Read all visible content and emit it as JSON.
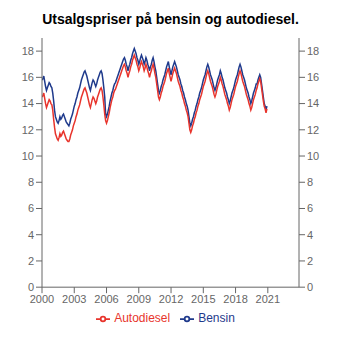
{
  "chart_data": {
    "type": "line",
    "title": "Utsalgspriser på bensin og autodiesel.",
    "x": [
      2000,
      2000.083333,
      2000.166667,
      2000.25,
      2000.333333,
      2000.416667,
      2000.5,
      2000.583333,
      2000.666667,
      2000.75,
      2000.833333,
      2000.916667,
      2001,
      2001.083333,
      2001.166667,
      2001.25,
      2001.333333,
      2001.416667,
      2001.5,
      2001.583333,
      2001.666667,
      2001.75,
      2001.833333,
      2001.916667,
      2002,
      2002.083333,
      2002.166667,
      2002.25,
      2002.333333,
      2002.416667,
      2002.5,
      2002.583333,
      2002.666667,
      2002.75,
      2002.833333,
      2002.916667,
      2003,
      2003.083333,
      2003.166667,
      2003.25,
      2003.333333,
      2003.416667,
      2003.5,
      2003.583333,
      2003.666667,
      2003.75,
      2003.833333,
      2003.916667,
      2004,
      2004.083333,
      2004.166667,
      2004.25,
      2004.333333,
      2004.416667,
      2004.5,
      2004.583333,
      2004.666667,
      2004.75,
      2004.833333,
      2004.916667,
      2005,
      2005.083333,
      2005.166667,
      2005.25,
      2005.333333,
      2005.416667,
      2005.5,
      2005.583333,
      2005.666667,
      2005.75,
      2005.833333,
      2005.916667,
      2006,
      2006.083333,
      2006.166667,
      2006.25,
      2006.333333,
      2006.416667,
      2006.5,
      2006.583333,
      2006.666667,
      2006.75,
      2006.833333,
      2006.916667,
      2007,
      2007.083333,
      2007.166667,
      2007.25,
      2007.333333,
      2007.416667,
      2007.5,
      2007.583333,
      2007.666667,
      2007.75,
      2007.833333,
      2007.916667,
      2008,
      2008.083333,
      2008.166667,
      2008.25,
      2008.333333,
      2008.416667,
      2008.5,
      2008.583333,
      2008.666667,
      2008.75,
      2008.833333,
      2008.916667,
      2009,
      2009.083333,
      2009.166667,
      2009.25,
      2009.333333,
      2009.416667,
      2009.5,
      2009.583333,
      2009.666667,
      2009.75,
      2009.833333,
      2009.916667,
      2010,
      2010.083333,
      2010.166667,
      2010.25,
      2010.333333,
      2010.416667,
      2010.5,
      2010.583333,
      2010.666667,
      2010.75,
      2010.833333,
      2010.916667,
      2011,
      2011.083333,
      2011.166667,
      2011.25,
      2011.333333,
      2011.416667,
      2011.5,
      2011.583333,
      2011.666667,
      2011.75,
      2011.833333,
      2011.916667,
      2012,
      2012.083333,
      2012.166667,
      2012.25,
      2012.333333,
      2012.416667,
      2012.5,
      2012.583333,
      2012.666667,
      2012.75,
      2012.833333,
      2012.916667,
      2013,
      2013.083333,
      2013.166667,
      2013.25,
      2013.333333,
      2013.416667,
      2013.5,
      2013.583333,
      2013.666667,
      2013.75,
      2013.833333,
      2013.916667,
      2014,
      2014.083333,
      2014.166667,
      2014.25,
      2014.333333,
      2014.416667,
      2014.5,
      2014.583333,
      2014.666667,
      2014.75,
      2014.833333,
      2014.916667,
      2015,
      2015.083333,
      2015.166667,
      2015.25,
      2015.333333,
      2015.416667,
      2015.5,
      2015.583333,
      2015.666667,
      2015.75,
      2015.833333,
      2015.916667,
      2016,
      2016.083333,
      2016.166667,
      2016.25,
      2016.333333,
      2016.416667,
      2016.5,
      2016.583333,
      2016.666667,
      2016.75,
      2016.833333,
      2016.916667,
      2017,
      2017.083333,
      2017.166667,
      2017.25,
      2017.333333,
      2017.416667,
      2017.5,
      2017.583333,
      2017.666667,
      2017.75,
      2017.833333,
      2017.916667,
      2018,
      2018.083333,
      2018.166667,
      2018.25,
      2018.333333,
      2018.416667,
      2018.5,
      2018.583333,
      2018.666667,
      2018.75,
      2018.833333,
      2018.916667,
      2019,
      2019.083333,
      2019.166667,
      2019.25,
      2019.333333,
      2019.416667,
      2019.5,
      2019.583333,
      2019.666667,
      2019.75,
      2019.833333,
      2019.916667,
      2020,
      2020.083333,
      2020.166667,
      2020.25,
      2020.333333,
      2020.416667,
      2020.5,
      2020.583333,
      2020.666667,
      2020.75,
      2020.833333,
      2020.916667
    ],
    "series": [
      {
        "name": "Bensin",
        "color": "#1f3a8c",
        "values": [
          15.8,
          15.9,
          16.1,
          15.7,
          15.3,
          15.0,
          15.2,
          15.4,
          15.6,
          15.5,
          15.3,
          15.2,
          14.8,
          14.2,
          13.5,
          13.0,
          12.8,
          12.6,
          12.5,
          12.7,
          13.0,
          12.8,
          12.9,
          13.1,
          13.2,
          13.0,
          12.8,
          12.6,
          12.5,
          12.4,
          12.3,
          12.5,
          12.8,
          13.0,
          13.2,
          13.5,
          13.8,
          14.0,
          14.3,
          14.5,
          14.8,
          15.0,
          15.2,
          15.5,
          15.8,
          16.0,
          16.2,
          16.4,
          16.5,
          16.3,
          16.1,
          15.8,
          15.5,
          15.2,
          15.0,
          15.3,
          15.6,
          15.8,
          15.7,
          15.5,
          15.3,
          15.5,
          15.8,
          16.0,
          16.2,
          16.4,
          16.5,
          16.3,
          15.8,
          15.2,
          14.5,
          13.2,
          13.0,
          13.2,
          13.5,
          13.8,
          14.2,
          14.5,
          14.8,
          15.0,
          15.3,
          15.5,
          15.6,
          15.8,
          16.0,
          16.2,
          16.4,
          16.6,
          16.8,
          17.0,
          17.2,
          17.4,
          17.5,
          17.3,
          17.0,
          16.8,
          16.5,
          16.8,
          17.0,
          17.3,
          17.5,
          17.8,
          18.0,
          18.2,
          18.0,
          17.8,
          17.5,
          17.3,
          17.0,
          17.2,
          17.5,
          17.7,
          17.5,
          17.3,
          17.0,
          17.2,
          17.5,
          17.3,
          17.0,
          16.8,
          16.5,
          16.8,
          17.0,
          17.3,
          17.5,
          17.2,
          16.8,
          16.5,
          16.0,
          15.5,
          15.0,
          14.8,
          15.0,
          15.3,
          15.5,
          15.8,
          16.0,
          16.2,
          16.5,
          16.8,
          17.0,
          17.2,
          16.8,
          16.5,
          16.2,
          16.5,
          16.8,
          17.0,
          17.2,
          17.0,
          16.8,
          16.5,
          16.2,
          16.0,
          15.8,
          15.5,
          15.3,
          15.0,
          14.8,
          14.5,
          14.3,
          14.0,
          13.8,
          13.5,
          13.0,
          12.5,
          12.3,
          12.5,
          12.8,
          13.0,
          13.3,
          13.5,
          13.8,
          14.0,
          14.3,
          14.5,
          14.8,
          15.0,
          15.2,
          15.5,
          15.8,
          16.0,
          16.2,
          16.5,
          16.8,
          17.0,
          16.8,
          16.5,
          16.2,
          16.0,
          15.8,
          15.5,
          15.2,
          15.0,
          15.2,
          15.5,
          15.8,
          16.0,
          16.2,
          16.5,
          16.3,
          16.0,
          15.8,
          15.5,
          15.2,
          15.0,
          14.8,
          14.5,
          14.3,
          14.0,
          14.2,
          14.5,
          14.8,
          15.0,
          15.2,
          15.5,
          15.8,
          16.0,
          16.2,
          16.5,
          16.8,
          17.0,
          16.8,
          16.5,
          16.2,
          16.0,
          15.8,
          15.5,
          15.2,
          15.0,
          14.8,
          14.5,
          14.3,
          14.0,
          14.2,
          14.5,
          14.8,
          15.0,
          15.2,
          15.5,
          15.5,
          15.8,
          16.0,
          16.2,
          16.0,
          15.5,
          15.0,
          14.5,
          14.0,
          13.8,
          13.5,
          13.8
        ]
      },
      {
        "name": "Autodiesel",
        "color": "#e8342c",
        "values": [
          14.5,
          14.6,
          14.8,
          14.4,
          14.0,
          13.7,
          13.9,
          14.1,
          14.3,
          14.2,
          14.0,
          13.9,
          13.5,
          12.8,
          12.2,
          11.7,
          11.5,
          11.3,
          11.2,
          11.4,
          11.7,
          11.5,
          11.6,
          11.8,
          11.9,
          11.7,
          11.5,
          11.3,
          11.2,
          11.1,
          11.1,
          11.3,
          11.6,
          11.8,
          12.0,
          12.3,
          12.5,
          12.7,
          13.0,
          13.2,
          13.5,
          13.7,
          13.9,
          14.2,
          14.5,
          14.7,
          14.9,
          15.1,
          15.2,
          15.0,
          14.8,
          14.5,
          14.2,
          13.9,
          13.7,
          14.0,
          14.3,
          14.5,
          14.4,
          14.2,
          14.0,
          14.2,
          14.5,
          14.7,
          14.9,
          15.1,
          15.2,
          15.0,
          14.5,
          13.9,
          13.2,
          12.7,
          12.5,
          12.7,
          13.0,
          13.3,
          13.7,
          14.0,
          14.3,
          14.5,
          14.8,
          15.0,
          15.1,
          15.3,
          15.5,
          15.7,
          15.9,
          16.1,
          16.3,
          16.5,
          16.7,
          16.9,
          17.0,
          16.8,
          16.5,
          16.3,
          16.0,
          16.3,
          16.5,
          16.8,
          17.0,
          17.3,
          17.5,
          17.7,
          17.5,
          17.3,
          17.0,
          16.8,
          16.5,
          16.7,
          17.0,
          17.2,
          17.0,
          16.8,
          16.5,
          16.7,
          17.0,
          16.8,
          16.5,
          16.3,
          16.0,
          16.3,
          16.5,
          16.8,
          17.0,
          16.7,
          16.3,
          16.0,
          15.5,
          15.0,
          14.5,
          14.3,
          14.5,
          14.8,
          15.0,
          15.3,
          15.5,
          15.7,
          16.0,
          16.3,
          16.5,
          16.7,
          16.3,
          16.0,
          15.7,
          16.0,
          16.3,
          16.5,
          16.7,
          16.5,
          16.3,
          16.0,
          15.7,
          15.5,
          15.3,
          15.0,
          14.8,
          14.5,
          14.3,
          14.0,
          13.8,
          13.5,
          13.3,
          13.0,
          12.5,
          12.0,
          11.8,
          12.0,
          12.3,
          12.5,
          12.8,
          13.0,
          13.3,
          13.5,
          13.8,
          14.0,
          14.3,
          14.5,
          14.7,
          15.0,
          15.3,
          15.5,
          15.7,
          16.0,
          16.3,
          16.5,
          16.3,
          16.0,
          15.7,
          15.5,
          15.3,
          15.0,
          14.7,
          14.5,
          14.7,
          15.0,
          15.3,
          15.5,
          15.7,
          16.0,
          15.8,
          15.5,
          15.3,
          15.0,
          14.7,
          14.5,
          14.3,
          14.0,
          13.8,
          13.5,
          13.7,
          14.0,
          14.3,
          14.5,
          14.7,
          15.0,
          15.3,
          15.5,
          15.7,
          16.0,
          16.3,
          16.5,
          16.3,
          16.0,
          15.7,
          15.5,
          15.3,
          15.0,
          14.7,
          14.5,
          14.3,
          14.0,
          13.8,
          13.5,
          13.7,
          14.0,
          14.3,
          14.5,
          14.7,
          15.0,
          15.2,
          15.5,
          15.7,
          15.9,
          15.7,
          15.2,
          14.7,
          14.2,
          13.8,
          13.6,
          13.3,
          13.6
        ]
      }
    ],
    "xlim": [
      2000.0,
      2023.9
    ],
    "xticks": [
      2000,
      2003,
      2006,
      2009,
      2012,
      2015,
      2018,
      2021
    ],
    "ylim": [
      0,
      19
    ],
    "yticks": [
      0,
      2,
      4,
      6,
      8,
      10,
      12,
      14,
      16,
      18
    ],
    "y2lim": [
      0,
      19
    ],
    "y2ticks": [
      0,
      2,
      4,
      6,
      8,
      10,
      12,
      14,
      16,
      18
    ],
    "grid": false,
    "legend": "bottom"
  }
}
